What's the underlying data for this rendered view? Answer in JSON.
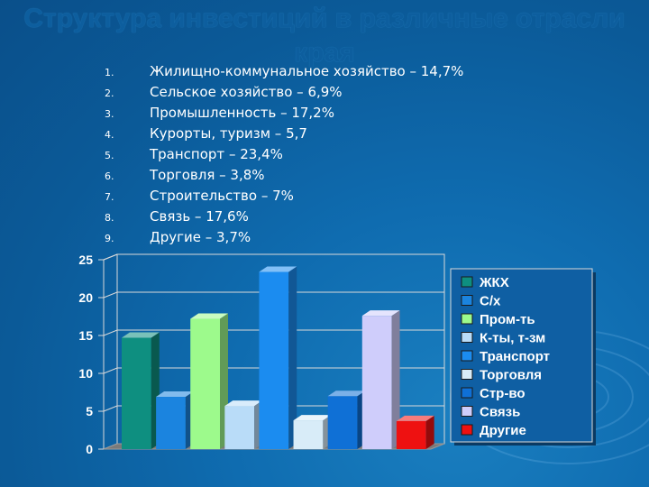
{
  "title": "Структура инвестиций в различные отрасли края",
  "list": [
    {
      "num": "1.",
      "text": "Жилищно-коммунальное хозяйство – 14,7%"
    },
    {
      "num": "2.",
      "text": "Сельское хозяйство – 6,9%"
    },
    {
      "num": "3.",
      "text": "Промышленность – 17,2%"
    },
    {
      "num": "4.",
      "text": "Курорты, туризм – 5,7"
    },
    {
      "num": "5.",
      "text": "Транспорт – 23,4%"
    },
    {
      "num": "6.",
      "text": "Торговля – 3,8%"
    },
    {
      "num": "7.",
      "text": "Строительство – 7%"
    },
    {
      "num": "8.",
      "text": "Связь – 17,6%"
    },
    {
      "num": "9.",
      "text": "Другие – 3,7%"
    }
  ],
  "chart_data": {
    "type": "bar",
    "title": "",
    "xlabel": "",
    "ylabel": "",
    "ylim": [
      0,
      25
    ],
    "yticks": [
      "0",
      "5",
      "10",
      "15",
      "20",
      "25"
    ],
    "grid": true,
    "three_d": true,
    "legend_position": "right",
    "series": [
      {
        "name": "ЖКХ",
        "value": 14.7,
        "color": "#0e8f80"
      },
      {
        "name": "С/х",
        "value": 6.9,
        "color": "#1b84df"
      },
      {
        "name": "Пром-ть",
        "value": 17.2,
        "color": "#9dfa8c"
      },
      {
        "name": "К-ты, т-зм",
        "value": 5.7,
        "color": "#b9dcf8"
      },
      {
        "name": "Транспорт",
        "value": 23.4,
        "color": "#1b8cf0"
      },
      {
        "name": "Торговля",
        "value": 3.8,
        "color": "#d8ecf8"
      },
      {
        "name": "Стр-во",
        "value": 7.0,
        "color": "#0f70d6"
      },
      {
        "name": "Связь",
        "value": 17.6,
        "color": "#cfcdfb"
      },
      {
        "name": "Другие",
        "value": 3.7,
        "color": "#ee1111"
      }
    ]
  }
}
